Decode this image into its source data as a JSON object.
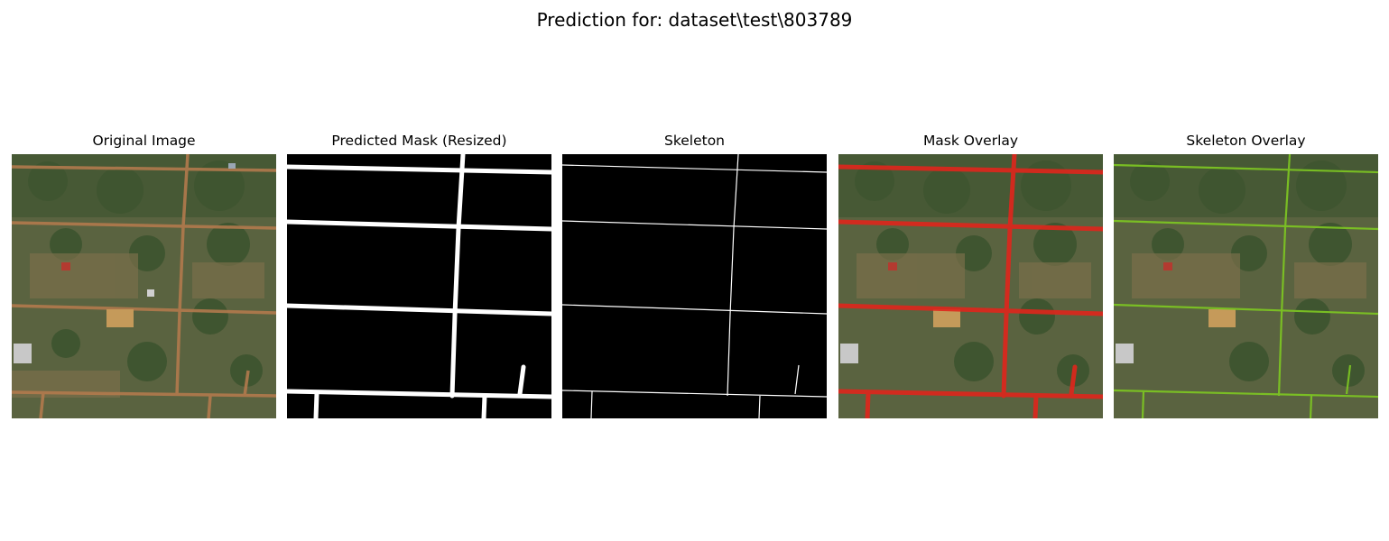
{
  "figure": {
    "suptitle": "Prediction for: dataset\\test\\803789"
  },
  "panels": [
    {
      "title": "Original Image",
      "kind": "aerial"
    },
    {
      "title": "Predicted Mask (Resized)",
      "kind": "mask"
    },
    {
      "title": "Skeleton",
      "kind": "skeleton"
    },
    {
      "title": "Mask Overlay",
      "kind": "mask-overlay",
      "overlay_color": "#e0261c"
    },
    {
      "title": "Skeleton Overlay",
      "kind": "skeleton-overlay",
      "overlay_color": "#7cc323"
    }
  ],
  "colors": {
    "road_dirt": "#b27a4d",
    "vegetation": "#4f5e3a",
    "mask": "#ffffff",
    "background": "#000000"
  }
}
